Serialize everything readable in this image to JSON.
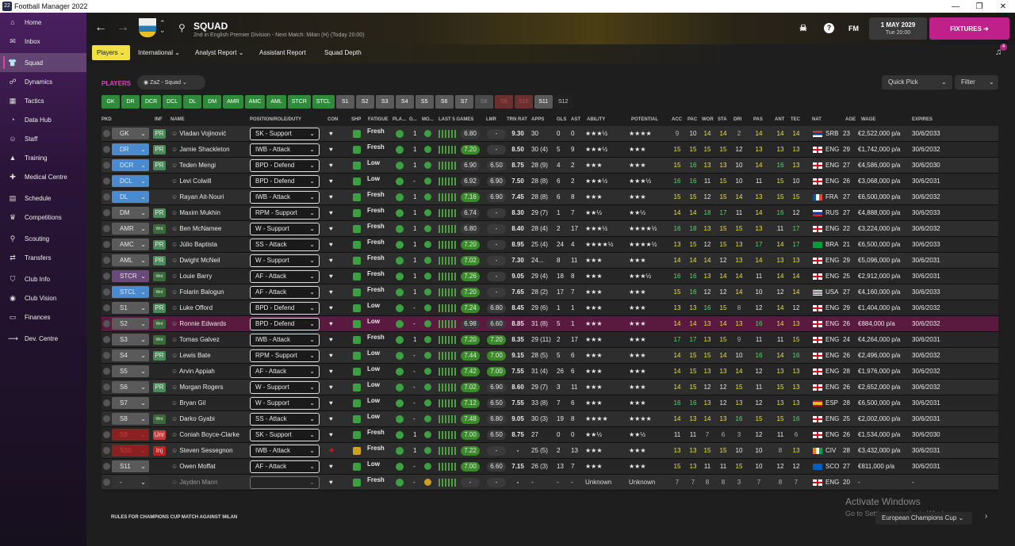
{
  "window": {
    "title": "Football Manager 2022",
    "app_icon": "22"
  },
  "sidebar": [
    {
      "label": "Home",
      "icon": "home-icon",
      "glyph": "⌂"
    },
    {
      "label": "Inbox",
      "icon": "inbox-icon",
      "glyph": "✉"
    },
    {
      "label": "Squad",
      "icon": "shirt-icon",
      "glyph": "👕",
      "active": true
    },
    {
      "label": "Dynamics",
      "icon": "dynamics-icon",
      "glyph": "☍"
    },
    {
      "label": "Tactics",
      "icon": "tactics-icon",
      "glyph": "▦"
    },
    {
      "label": "Data Hub",
      "icon": "datahub-icon",
      "glyph": "◔"
    },
    {
      "label": "Staff",
      "icon": "staff-icon",
      "glyph": "☺"
    },
    {
      "label": "Training",
      "icon": "training-icon",
      "glyph": "▲"
    },
    {
      "label": "Medical Centre",
      "icon": "medical-icon",
      "glyph": "✚"
    },
    {
      "label": "Schedule",
      "icon": "schedule-icon",
      "glyph": "▤"
    },
    {
      "label": "Competitions",
      "icon": "trophy-icon",
      "glyph": "♛"
    },
    {
      "label": "Scouting",
      "icon": "scouting-icon",
      "glyph": "⚲"
    },
    {
      "label": "Transfers",
      "icon": "transfers-icon",
      "glyph": "⇄"
    },
    {
      "label": "Club Info",
      "icon": "shield-icon",
      "glyph": "⛉"
    },
    {
      "label": "Club Vision",
      "icon": "vision-icon",
      "glyph": "◉"
    },
    {
      "label": "Finances",
      "icon": "finances-icon",
      "glyph": "▭"
    },
    {
      "label": "Dev. Centre",
      "icon": "dev-centre-icon",
      "glyph": "⟿"
    }
  ],
  "header": {
    "title": "SQUAD",
    "subtitle": "2nd in English Premier Division - Next Match: Milan (H) (Today 20:00)",
    "date": "1 MAY 2029",
    "time": "Tue 20:00",
    "fixtures": "FIXTURES",
    "fm": "FM",
    "help": "?"
  },
  "subnav": [
    "Players",
    "International",
    "Analyst Report",
    "Assistant Report",
    "Squad Depth"
  ],
  "notifications": "4",
  "players_label": "PLAYERS",
  "view": "ZaZ - Squad",
  "quick_pick": "Quick Pick",
  "filter": "Filter",
  "pos_tabs": [
    {
      "l": "GK",
      "t": "g"
    },
    {
      "l": "DR",
      "t": "g"
    },
    {
      "l": "DCR",
      "t": "g"
    },
    {
      "l": "DCL",
      "t": "g"
    },
    {
      "l": "DL",
      "t": "g"
    },
    {
      "l": "DM",
      "t": "g"
    },
    {
      "l": "AMR",
      "t": "g"
    },
    {
      "l": "AMC",
      "t": "g"
    },
    {
      "l": "AML",
      "t": "g"
    },
    {
      "l": "STCR",
      "t": "g"
    },
    {
      "l": "STCL",
      "t": "g"
    },
    {
      "l": "S1",
      "t": "s"
    },
    {
      "l": "S2",
      "t": "s"
    },
    {
      "l": "S3",
      "t": "s"
    },
    {
      "l": "S4",
      "t": "s"
    },
    {
      "l": "S5",
      "t": "s"
    },
    {
      "l": "S6",
      "t": "s"
    },
    {
      "l": "S7",
      "t": "s"
    },
    {
      "l": "S8",
      "t": "d"
    },
    {
      "l": "S9",
      "t": "r"
    },
    {
      "l": "S10",
      "t": "r"
    },
    {
      "l": "S11",
      "t": "s"
    },
    {
      "l": "S12",
      "t": "k"
    }
  ],
  "columns": [
    "PKD",
    "INF",
    "NAME",
    "POSITION/ROLE/DUTY",
    "CON",
    "SHP",
    "FATIGUE",
    "PLA...",
    "G...",
    "MO...",
    "LAST 5 GAMES",
    "LMR",
    "TRN RAT",
    "APPS",
    "GLS",
    "AST",
    "ABILITY",
    "POTENTIAL",
    "ACC",
    "PAC",
    "WOR",
    "STA",
    "DRI",
    "PAS",
    "ANT",
    "TEC",
    "NAT",
    "AGE",
    "WAGE",
    "EXPIRES"
  ],
  "players": [
    {
      "pos": "GK",
      "pc": "grey",
      "inf": "PR",
      "name": "Vladan Vojinović",
      "role": "SK - Support",
      "fat": "Fresh",
      "g": "1",
      "l5": "6.80",
      "l5h": false,
      "lmr": "-",
      "trn": "9.30",
      "apps": "30",
      "gls": "0",
      "ast": "0",
      "ab": "★★★½",
      "pt": "★★★★",
      "a": [
        "9",
        "10",
        "14",
        "14",
        "2",
        "14",
        "14",
        "14"
      ],
      "nat": "SRB",
      "flag": "srb",
      "age": "23",
      "wage": "€2,522,000 p/a",
      "exp": "30/6/2033"
    },
    {
      "pos": "DR",
      "pc": "dir",
      "inf": "PR",
      "name": "Jamie Shackleton",
      "role": "IWB - Attack",
      "fat": "Fresh",
      "g": "1",
      "l5": "7.20",
      "l5h": true,
      "lmr": "-",
      "trn": "8.50",
      "apps": "30 (4)",
      "gls": "5",
      "ast": "9",
      "ab": "★★★½",
      "pt": "★★★",
      "a": [
        "15",
        "15",
        "15",
        "15",
        "12",
        "13",
        "13",
        "13"
      ],
      "nat": "ENG",
      "flag": "eng",
      "age": "29",
      "wage": "€1,742,000 p/a",
      "exp": "30/6/2032"
    },
    {
      "pos": "DCR",
      "pc": "dir",
      "inf": "PR",
      "name": "Teden Mengi",
      "role": "BPD - Defend",
      "fat": "Low",
      "g": "1",
      "l5": "6.90",
      "l5h": false,
      "lmr": "6.50",
      "trn": "8.75",
      "apps": "28 (9)",
      "gls": "4",
      "ast": "2",
      "ab": "★★★",
      "pt": "★★★",
      "a": [
        "15",
        "16",
        "13",
        "13",
        "10",
        "14",
        "16",
        "13"
      ],
      "nat": "ENG",
      "flag": "eng",
      "age": "27",
      "wage": "€4,586,000 p/a",
      "exp": "30/6/2030"
    },
    {
      "pos": "DCL",
      "pc": "dir",
      "inf": "",
      "name": "Levi Colwill",
      "role": "BPD - Defend",
      "fat": "Low",
      "g": "-",
      "l5": "6.92",
      "l5h": false,
      "lmr": "6.90",
      "trn": "7.50",
      "apps": "28 (8)",
      "gls": "6",
      "ast": "2",
      "ab": "★★★½",
      "pt": "★★★½",
      "a": [
        "16",
        "16",
        "11",
        "15",
        "10",
        "11",
        "15",
        "10"
      ],
      "nat": "ENG",
      "flag": "eng",
      "age": "26",
      "wage": "€3,068,000 p/a",
      "exp": "30/6/2031"
    },
    {
      "pos": "DL",
      "pc": "dir",
      "inf": "",
      "name": "Rayan Ait-Nouri",
      "role": "IWB - Attack",
      "fat": "Fresh",
      "g": "1",
      "l5": "7.16",
      "l5h": true,
      "lmr": "6.90",
      "trn": "7.45",
      "apps": "28 (8)",
      "gls": "6",
      "ast": "8",
      "ab": "★★★",
      "pt": "★★★",
      "a": [
        "15",
        "15",
        "12",
        "15",
        "14",
        "13",
        "15",
        "15"
      ],
      "nat": "FRA",
      "flag": "fra",
      "age": "27",
      "wage": "€6,500,000 p/a",
      "exp": "30/6/2032"
    },
    {
      "pos": "DM",
      "pc": "grey",
      "inf": "PR",
      "name": "Maxim Mukhin",
      "role": "RPM - Support",
      "fat": "Fresh",
      "g": "1",
      "l5": "6.74",
      "l5h": false,
      "lmr": "-",
      "trn": "8.30",
      "apps": "29 (7)",
      "gls": "1",
      "ast": "7",
      "ab": "★★½",
      "pt": "★★½",
      "a": [
        "14",
        "14",
        "18",
        "17",
        "11",
        "14",
        "16",
        "12"
      ],
      "nat": "RUS",
      "flag": "rus",
      "age": "27",
      "wage": "€4,888,000 p/a",
      "exp": "30/6/2033"
    },
    {
      "pos": "AMR",
      "pc": "grey",
      "inf": "Wnt",
      "name": "Ben McNamee",
      "role": "W - Support",
      "fat": "Fresh",
      "g": "1",
      "l5": "6.80",
      "l5h": false,
      "lmr": "-",
      "trn": "8.40",
      "apps": "28 (4)",
      "gls": "2",
      "ast": "17",
      "ab": "★★★½",
      "pt": "★★★★½",
      "a": [
        "16",
        "18",
        "13",
        "15",
        "15",
        "13",
        "11",
        "17"
      ],
      "nat": "ENG",
      "flag": "eng",
      "age": "22",
      "wage": "€3,224,000 p/a",
      "exp": "30/6/2032"
    },
    {
      "pos": "AMC",
      "pc": "grey",
      "inf": "PR",
      "name": "Júlio Baptista",
      "role": "SS - Attack",
      "fat": "Fresh",
      "g": "1",
      "l5": "7.20",
      "l5h": true,
      "lmr": "-",
      "trn": "8.95",
      "apps": "25 (4)",
      "gls": "24",
      "ast": "4",
      "ab": "★★★★½",
      "pt": "★★★★½",
      "a": [
        "13",
        "15",
        "12",
        "15",
        "13",
        "17",
        "14",
        "17"
      ],
      "nat": "BRA",
      "flag": "bra",
      "age": "21",
      "wage": "€6,500,000 p/a",
      "exp": "30/6/2033"
    },
    {
      "pos": "AML",
      "pc": "grey",
      "inf": "PR",
      "name": "Dwight McNeil",
      "role": "W - Support",
      "fat": "Fresh",
      "g": "1",
      "l5": "7.02",
      "l5h": true,
      "lmr": "-",
      "trn": "7.30",
      "apps": "24...",
      "gls": "8",
      "ast": "11",
      "ab": "★★★",
      "pt": "★★★",
      "a": [
        "14",
        "14",
        "14",
        "12",
        "13",
        "14",
        "13",
        "13"
      ],
      "nat": "ENG",
      "flag": "eng",
      "age": "29",
      "wage": "€5,096,000 p/a",
      "exp": "30/6/2031"
    },
    {
      "pos": "STCR",
      "pc": "ddc",
      "inf": "Wnt",
      "name": "Louie Barry",
      "role": "AF - Attack",
      "fat": "Fresh",
      "g": "1",
      "l5": "7.26",
      "l5h": true,
      "lmr": "-",
      "trn": "9.05",
      "apps": "29 (4)",
      "gls": "18",
      "ast": "8",
      "ab": "★★★",
      "pt": "★★★½",
      "a": [
        "16",
        "16",
        "13",
        "14",
        "14",
        "11",
        "14",
        "14"
      ],
      "nat": "ENG",
      "flag": "eng",
      "age": "25",
      "wage": "€2,912,000 p/a",
      "exp": "30/6/2031"
    },
    {
      "pos": "STCL",
      "pc": "dir",
      "inf": "Wnt",
      "name": "Folarin Balogun",
      "role": "AF - Attack",
      "fat": "Fresh",
      "g": "1",
      "l5": "7.20",
      "l5h": true,
      "lmr": "-",
      "trn": "7.65",
      "apps": "28 (2)",
      "gls": "17",
      "ast": "7",
      "ab": "★★★",
      "pt": "★★★",
      "a": [
        "15",
        "16",
        "12",
        "12",
        "14",
        "10",
        "12",
        "14"
      ],
      "nat": "USA",
      "flag": "usa",
      "age": "27",
      "wage": "€4,160,000 p/a",
      "exp": "30/6/2033"
    },
    {
      "pos": "S1",
      "pc": "grey",
      "inf": "PR",
      "name": "Luke Offord",
      "role": "BPD - Defend",
      "fat": "Low",
      "g": "-",
      "l5": "7.24",
      "l5h": true,
      "lmr": "6.80",
      "trn": "8.45",
      "apps": "29 (6)",
      "gls": "1",
      "ast": "1",
      "ab": "★★★",
      "pt": "★★★",
      "a": [
        "13",
        "13",
        "16",
        "15",
        "8",
        "12",
        "14",
        "12"
      ],
      "nat": "ENG",
      "flag": "eng",
      "age": "29",
      "wage": "€1,404,000 p/a",
      "exp": "30/6/2032"
    },
    {
      "pos": "S2",
      "pc": "grey",
      "inf": "Wnt",
      "name": "Ronnie Edwards",
      "role": "BPD - Defend",
      "fat": "Low",
      "g": "-",
      "l5": "6.98",
      "l5h": false,
      "lmr": "6.60",
      "trn": "8.85",
      "apps": "31 (8)",
      "gls": "5",
      "ast": "1",
      "ab": "★★★",
      "pt": "★★★",
      "a": [
        "14",
        "14",
        "13",
        "14",
        "13",
        "16",
        "14",
        "13"
      ],
      "nat": "ENG",
      "flag": "eng",
      "age": "26",
      "wage": "€884,000 p/a",
      "exp": "30/6/2032",
      "sel": true
    },
    {
      "pos": "S3",
      "pc": "grey",
      "inf": "Wnt",
      "name": "Tomas Galvez",
      "role": "IWB - Attack",
      "fat": "Fresh",
      "g": "1",
      "l5": "7.20",
      "l5h": true,
      "lmr": "7.20",
      "trn": "8.35",
      "apps": "29 (11)",
      "gls": "2",
      "ast": "17",
      "ab": "★★★",
      "pt": "★★★",
      "a": [
        "17",
        "17",
        "13",
        "15",
        "9",
        "11",
        "11",
        "15"
      ],
      "nat": "ENG",
      "flag": "eng",
      "age": "24",
      "wage": "€4,264,000 p/a",
      "exp": "30/6/2031"
    },
    {
      "pos": "S4",
      "pc": "grey",
      "inf": "PR",
      "name": "Lewis Bate",
      "role": "RPM - Support",
      "fat": "Low",
      "g": "-",
      "l5": "7.44",
      "l5h": true,
      "lmr": "7.00",
      "trn": "9.15",
      "apps": "28 (5)",
      "gls": "5",
      "ast": "6",
      "ab": "★★★",
      "pt": "★★★",
      "a": [
        "14",
        "15",
        "15",
        "14",
        "10",
        "16",
        "14",
        "16"
      ],
      "nat": "ENG",
      "flag": "eng",
      "age": "26",
      "wage": "€2,496,000 p/a",
      "exp": "30/6/2032"
    },
    {
      "pos": "S5",
      "pc": "grey",
      "inf": "",
      "name": "Arvin Appiah",
      "role": "AF - Attack",
      "fat": "Low",
      "g": "-",
      "l5": "7.42",
      "l5h": true,
      "lmr": "7.00",
      "trn": "7.55",
      "apps": "31 (4)",
      "gls": "26",
      "ast": "6",
      "ab": "★★★",
      "pt": "★★★",
      "a": [
        "14",
        "15",
        "13",
        "13",
        "14",
        "12",
        "13",
        "13"
      ],
      "nat": "ENG",
      "flag": "eng",
      "age": "28",
      "wage": "€1,976,000 p/a",
      "exp": "30/6/2032"
    },
    {
      "pos": "S6",
      "pc": "grey",
      "inf": "PR",
      "name": "Morgan Rogers",
      "role": "W - Support",
      "fat": "Low",
      "g": "-",
      "l5": "7.02",
      "l5h": true,
      "lmr": "6.90",
      "trn": "8.60",
      "apps": "29 (7)",
      "gls": "3",
      "ast": "11",
      "ab": "★★★",
      "pt": "★★★",
      "a": [
        "14",
        "15",
        "12",
        "12",
        "15",
        "11",
        "15",
        "13"
      ],
      "nat": "ENG",
      "flag": "eng",
      "age": "26",
      "wage": "€2,652,000 p/a",
      "exp": "30/6/2032"
    },
    {
      "pos": "S7",
      "pc": "grey",
      "inf": "",
      "name": "Bryan Gil",
      "role": "W - Support",
      "fat": "Low",
      "g": "-",
      "l5": "7.12",
      "l5h": true,
      "lmr": "6.50",
      "trn": "7.55",
      "apps": "33 (8)",
      "gls": "7",
      "ast": "6",
      "ab": "★★★",
      "pt": "★★★",
      "a": [
        "16",
        "16",
        "13",
        "12",
        "13",
        "12",
        "13",
        "13"
      ],
      "nat": "ESP",
      "flag": "esp",
      "age": "28",
      "wage": "€6,500,000 p/a",
      "exp": "30/6/2031"
    },
    {
      "pos": "S8",
      "pc": "grey",
      "inf": "Wnt",
      "name": "Darko Gyabi",
      "role": "SS - Attack",
      "fat": "Low",
      "g": "-",
      "l5": "7.48",
      "l5h": true,
      "lmr": "6.80",
      "trn": "9.05",
      "apps": "30 (3)",
      "gls": "19",
      "ast": "8",
      "ab": "★★★★",
      "pt": "★★★★",
      "a": [
        "14",
        "13",
        "14",
        "13",
        "16",
        "15",
        "15",
        "16"
      ],
      "nat": "ENG",
      "flag": "eng",
      "age": "25",
      "wage": "€2,002,000 p/a",
      "exp": "30/6/2031"
    },
    {
      "pos": "S9",
      "pc": "red",
      "inf": "Unr",
      "name": "Coniah Boyce-Clarke",
      "role": "SK - Support",
      "fat": "Fresh",
      "g": "1",
      "l5": "7.00",
      "l5h": true,
      "lmr": "6.50",
      "trn": "8.75",
      "apps": "27",
      "gls": "0",
      "ast": "0",
      "ab": "★★½",
      "pt": "★★½",
      "a": [
        "11",
        "11",
        "7",
        "6",
        "3",
        "12",
        "11",
        "6"
      ],
      "nat": "ENG",
      "flag": "eng",
      "age": "26",
      "wage": "€1,534,000 p/a",
      "exp": "30/6/2030"
    },
    {
      "pos": "S10",
      "pc": "red",
      "inf": "Inj",
      "name": "Steven Sessegnon",
      "role": "IWB - Attack",
      "fat": "Fresh",
      "g": "1",
      "l5": "7.22",
      "l5h": true,
      "lmr": "-",
      "trn": "-",
      "apps": "25 (5)",
      "gls": "2",
      "ast": "13",
      "ab": "★★★",
      "pt": "★★★",
      "a": [
        "13",
        "13",
        "15",
        "15",
        "10",
        "10",
        "8",
        "13"
      ],
      "nat": "CIV",
      "flag": "civ",
      "age": "28",
      "wage": "€3,432,000 p/a",
      "exp": "30/6/2031"
    },
    {
      "pos": "S11",
      "pc": "grey",
      "inf": "",
      "name": "Owen Moffat",
      "role": "AF - Attack",
      "fat": "Low",
      "g": "-",
      "l5": "7.00",
      "l5h": true,
      "lmr": "6.60",
      "trn": "7.15",
      "apps": "26 (3)",
      "gls": "13",
      "ast": "7",
      "ab": "★★★",
      "pt": "★★★",
      "a": [
        "15",
        "13",
        "11",
        "11",
        "15",
        "10",
        "12",
        "12"
      ],
      "nat": "SCO",
      "flag": "sco",
      "age": "27",
      "wage": "€811,000 p/a",
      "exp": "30/6/2031"
    },
    {
      "pos": "-",
      "pc": "blank",
      "inf": "",
      "name": "Jayden Mann",
      "role": "",
      "fat": "Fresh",
      "g": "-",
      "l5": "-",
      "l5h": false,
      "lmr": "-",
      "trn": "-",
      "apps": "-",
      "gls": "-",
      "ast": "-",
      "ab": "Unknown",
      "pt": "Unknown",
      "a": [
        "7",
        "7",
        "8",
        "8",
        "3",
        "7",
        "8",
        "7"
      ],
      "nat": "ENG",
      "flag": "eng",
      "age": "20",
      "wage": "-",
      "exp": "-"
    }
  ],
  "footer": {
    "rules": "RULES FOR CHAMPIONS CUP MATCH AGAINST MILAN",
    "comp": "European Champions Cup"
  },
  "watermark": {
    "l1": "Activate Windows",
    "l2": "Go to Settings to activate Windows."
  },
  "colors": {
    "accent": "#c0208a",
    "green": "#4ce060",
    "star": "#e8c020"
  }
}
